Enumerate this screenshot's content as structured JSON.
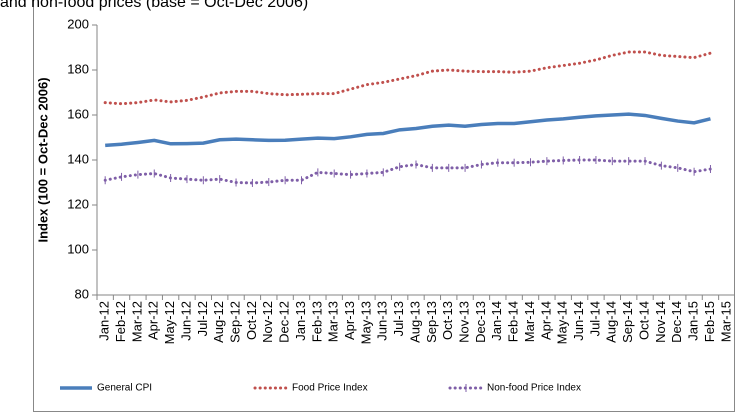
{
  "chart_data": {
    "type": "line",
    "title": "and non-food prices (base = Oct-Dec 2006)",
    "ylabel": "Index (100 = Oct-Dec 2006)",
    "categories": [
      "Jan-12",
      "Feb-12",
      "Mar-12",
      "Apr-12",
      "May-12",
      "Jun-12",
      "Jul-12",
      "Aug-12",
      "Sep-12",
      "Oct-12",
      "Nov-12",
      "Dec-12",
      "Jan-13",
      "Feb-13",
      "Mar-13",
      "Apr-13",
      "May-13",
      "Jun-13",
      "Jul-13",
      "Aug-13",
      "Sep-13",
      "Oct-13",
      "Nov-13",
      "Dec-13",
      "Jan-14",
      "Feb-14",
      "Mar-14",
      "Apr-14",
      "May-14",
      "Jun-14",
      "Jul-14",
      "Aug-14",
      "Sep-14",
      "Oct-14",
      "Nov-14",
      "Dec-14",
      "Jan-15",
      "Feb-15",
      "Mar-15"
    ],
    "series": [
      {
        "name": "General CPI",
        "color": "#4a7ebb",
        "style": "solid",
        "values": [
          146.5,
          147,
          147.8,
          148.7,
          147.2,
          147.3,
          147.5,
          149,
          149.3,
          149,
          148.7,
          148.8,
          149.3,
          149.7,
          149.5,
          150.3,
          151.4,
          151.8,
          153.4,
          154,
          155,
          155.5,
          155,
          155.8,
          156.2,
          156.2,
          157,
          157.8,
          158.3,
          159,
          159.6,
          160,
          160.4,
          159.8,
          158.5,
          157.3,
          156.5,
          158.3,
          null
        ]
      },
      {
        "name": "Food Price Index",
        "color": "#c0504d",
        "style": "dotted",
        "values": [
          165.5,
          165,
          165.5,
          166.7,
          165.8,
          166.5,
          168,
          169.8,
          170.5,
          170.5,
          169.5,
          169,
          169.2,
          169.5,
          169.5,
          171.5,
          173.5,
          174.5,
          176,
          177.5,
          179.5,
          180,
          179.5,
          179.3,
          179.3,
          179,
          179.5,
          181,
          182,
          183,
          184.5,
          186.5,
          188,
          188,
          186.5,
          186,
          185.5,
          187.5,
          null
        ]
      },
      {
        "name": "Non-food Price Index",
        "color": "#7f5fa8",
        "style": "dotted-plus",
        "values": [
          131,
          132.5,
          133.5,
          134,
          132,
          131.5,
          131,
          131.5,
          130,
          129.8,
          130.2,
          131,
          131,
          134.5,
          134,
          133.5,
          134,
          134.5,
          137,
          138,
          136.5,
          136.5,
          136.5,
          138,
          138.8,
          138.8,
          139,
          139.5,
          139.8,
          140,
          140,
          139.5,
          139.5,
          139.5,
          137.5,
          136.5,
          134.8,
          136,
          null
        ]
      }
    ],
    "ylim": [
      80,
      200
    ],
    "yticks": [
      80,
      100,
      120,
      140,
      160,
      180,
      200
    ],
    "grid": false,
    "legend": "bottom"
  }
}
